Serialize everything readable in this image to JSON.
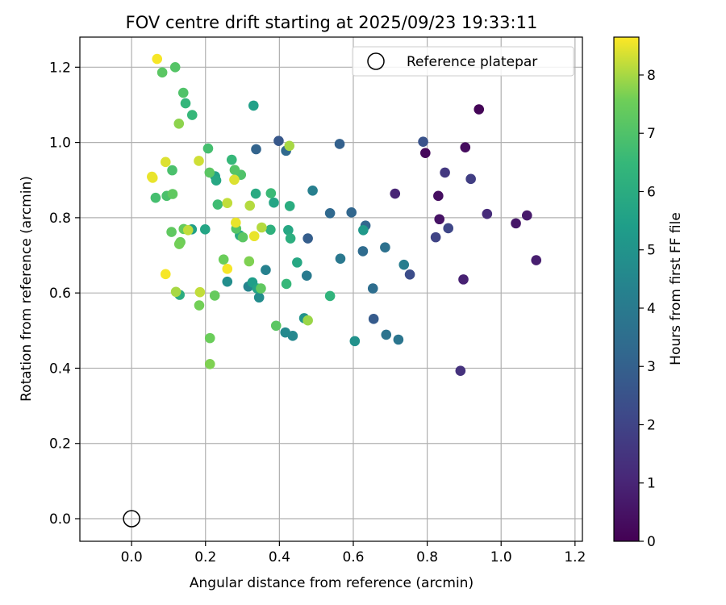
{
  "chart_data": {
    "type": "scatter",
    "title": "FOV centre drift starting at 2025/09/23 19:33:11",
    "xlabel": "Angular distance from reference (arcmin)",
    "ylabel": "Rotation from reference (arcmin)",
    "xlim": [
      -0.14,
      1.22
    ],
    "ylim": [
      -0.06,
      1.28
    ],
    "xticks": [
      0.0,
      0.2,
      0.4,
      0.6,
      0.8,
      1.0,
      1.2
    ],
    "yticks": [
      0.0,
      0.2,
      0.4,
      0.6,
      0.8,
      1.0,
      1.2
    ],
    "xtick_labels": [
      "0.0",
      "0.2",
      "0.4",
      "0.6",
      "0.8",
      "1.0",
      "1.2"
    ],
    "ytick_labels": [
      "0.0",
      "0.2",
      "0.4",
      "0.6",
      "0.8",
      "1.0",
      "1.2"
    ],
    "grid": true,
    "legend": {
      "position": "top-right",
      "label": "Reference platepar",
      "marker": "hollow-circle",
      "reference_point": [
        0.0,
        0.0
      ]
    },
    "colorbar": {
      "label": "Hours from first FF file",
      "range": [
        0,
        8.65
      ],
      "ticks": [
        0,
        1,
        2,
        3,
        4,
        5,
        6,
        7,
        8
      ],
      "tick_labels": [
        "0",
        "1",
        "2",
        "3",
        "4",
        "5",
        "6",
        "7",
        "8"
      ],
      "colormap": "viridis"
    },
    "points": [
      [
        0.94,
        1.088,
        0.1
      ],
      [
        0.795,
        0.972,
        0.2
      ],
      [
        0.903,
        0.987,
        0.3
      ],
      [
        0.83,
        0.858,
        0.4
      ],
      [
        0.833,
        0.796,
        0.5
      ],
      [
        1.04,
        0.785,
        0.6
      ],
      [
        1.07,
        0.806,
        0.7
      ],
      [
        1.095,
        0.687,
        0.8
      ],
      [
        0.898,
        0.636,
        0.9
      ],
      [
        0.713,
        0.864,
        1.0
      ],
      [
        0.962,
        0.81,
        1.2
      ],
      [
        0.89,
        0.393,
        1.4
      ],
      [
        0.848,
        0.92,
        1.6
      ],
      [
        0.918,
        0.903,
        1.8
      ],
      [
        0.823,
        0.748,
        2.0
      ],
      [
        0.857,
        0.772,
        2.1
      ],
      [
        0.753,
        0.649,
        2.3
      ],
      [
        0.789,
        1.002,
        2.5
      ],
      [
        0.655,
        0.531,
        2.8
      ],
      [
        0.477,
        0.745,
        2.9
      ],
      [
        0.398,
        1.004,
        2.7
      ],
      [
        0.563,
        0.996,
        3.0
      ],
      [
        0.633,
        0.779,
        3.2
      ],
      [
        0.418,
        0.978,
        3.3
      ],
      [
        0.337,
        0.982,
        3.1
      ],
      [
        0.595,
        0.814,
        3.2
      ],
      [
        0.537,
        0.812,
        3.3
      ],
      [
        0.626,
        0.711,
        3.4
      ],
      [
        0.653,
        0.612,
        3.5
      ],
      [
        0.686,
        0.721,
        3.6
      ],
      [
        0.689,
        0.489,
        3.7
      ],
      [
        0.722,
        0.476,
        3.8
      ],
      [
        0.565,
        0.691,
        3.9
      ],
      [
        0.474,
        0.646,
        4.0
      ],
      [
        0.737,
        0.675,
        4.1
      ],
      [
        0.49,
        0.872,
        4.2
      ],
      [
        0.363,
        0.661,
        4.3
      ],
      [
        0.316,
        0.617,
        4.4
      ],
      [
        0.436,
        0.486,
        4.5
      ],
      [
        0.416,
        0.495,
        4.6
      ],
      [
        0.345,
        0.588,
        4.7
      ],
      [
        0.259,
        0.63,
        4.8
      ],
      [
        0.604,
        0.472,
        4.9
      ],
      [
        0.467,
        0.533,
        5.0
      ],
      [
        0.627,
        0.767,
        5.2
      ],
      [
        0.327,
        0.628,
        5.4
      ],
      [
        0.226,
        0.91,
        5.6
      ],
      [
        0.229,
        0.899,
        5.8
      ],
      [
        0.336,
        0.864,
        5.9
      ],
      [
        0.33,
        1.098,
        5.5
      ],
      [
        0.385,
        0.84,
        5.7
      ],
      [
        0.34,
        0.612,
        5.6
      ],
      [
        0.448,
        0.681,
        5.8
      ],
      [
        0.293,
        0.753,
        5.9
      ],
      [
        0.199,
        0.769,
        5.7
      ],
      [
        0.13,
        0.595,
        6.0
      ],
      [
        0.163,
        0.769,
        5.5
      ],
      [
        0.424,
        0.767,
        5.8
      ],
      [
        0.428,
        0.831,
        6.0
      ],
      [
        0.43,
        0.745,
        6.1
      ],
      [
        0.376,
        0.768,
        6.2
      ],
      [
        0.537,
        0.592,
        6.3
      ],
      [
        0.419,
        0.624,
        6.5
      ],
      [
        0.146,
        1.104,
        6.4
      ],
      [
        0.164,
        1.073,
        6.5
      ],
      [
        0.377,
        0.865,
        6.6
      ],
      [
        0.271,
        0.954,
        6.5
      ],
      [
        0.233,
        0.835,
        6.7
      ],
      [
        0.065,
        0.853,
        6.8
      ],
      [
        0.095,
        0.858,
        6.9
      ],
      [
        0.11,
        0.926,
        6.9
      ],
      [
        0.14,
        1.132,
        7.0
      ],
      [
        0.118,
        1.2,
        7.1
      ],
      [
        0.083,
        1.186,
        7.2
      ],
      [
        0.207,
        0.984,
        6.8
      ],
      [
        0.296,
        0.914,
        7.0
      ],
      [
        0.279,
        0.927,
        7.1
      ],
      [
        0.211,
        0.92,
        7.2
      ],
      [
        0.111,
        0.863,
        7.3
      ],
      [
        0.283,
        0.771,
        7.1
      ],
      [
        0.301,
        0.748,
        7.2
      ],
      [
        0.108,
        0.762,
        7.3
      ],
      [
        0.141,
        0.77,
        7.4
      ],
      [
        0.132,
        0.735,
        7.5
      ],
      [
        0.129,
        0.73,
        7.6
      ],
      [
        0.391,
        0.513,
        7.2
      ],
      [
        0.35,
        0.612,
        7.3
      ],
      [
        0.249,
        0.689,
        7.5
      ],
      [
        0.225,
        0.593,
        7.4
      ],
      [
        0.212,
        0.48,
        7.5
      ],
      [
        0.212,
        0.411,
        7.7
      ],
      [
        0.183,
        0.567,
        7.6
      ],
      [
        0.318,
        0.684,
        7.7
      ],
      [
        0.128,
        1.05,
        7.8
      ],
      [
        0.477,
        0.527,
        7.9
      ],
      [
        0.427,
        0.991,
        8.0
      ],
      [
        0.12,
        0.603,
        8.0
      ],
      [
        0.185,
        0.602,
        8.2
      ],
      [
        0.352,
        0.774,
        8.1
      ],
      [
        0.32,
        0.832,
        8.1
      ],
      [
        0.259,
        0.839,
        8.2
      ],
      [
        0.153,
        0.767,
        8.2
      ],
      [
        0.278,
        0.901,
        8.4
      ],
      [
        0.182,
        0.951,
        8.3
      ],
      [
        0.092,
        0.948,
        8.4
      ],
      [
        0.055,
        0.909,
        8.5
      ],
      [
        0.057,
        0.906,
        8.5
      ],
      [
        0.282,
        0.787,
        8.5
      ],
      [
        0.332,
        0.751,
        8.5
      ],
      [
        0.259,
        0.664,
        8.6
      ],
      [
        0.092,
        0.65,
        8.6
      ],
      [
        0.069,
        1.222,
        8.6
      ]
    ]
  }
}
